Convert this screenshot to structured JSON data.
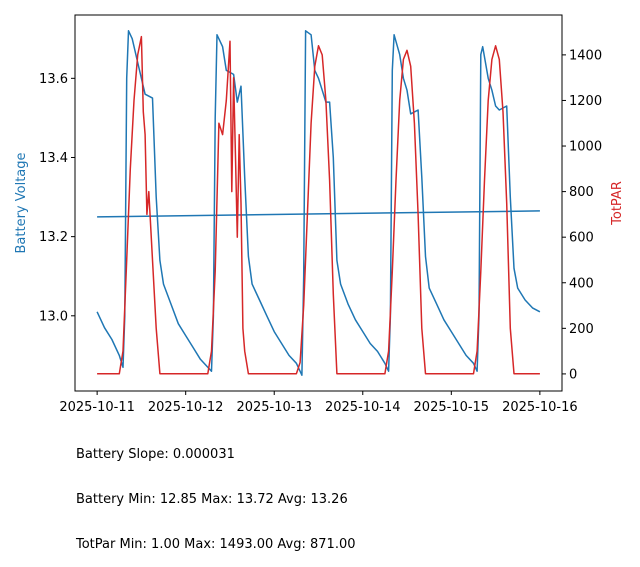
{
  "chart_data": {
    "type": "line",
    "x_range": [
      "2025-10-10 18:00",
      "2025-10-16 06:00"
    ],
    "x_ticks": [
      "2025-10-11",
      "2025-10-12",
      "2025-10-13",
      "2025-10-14",
      "2025-10-15",
      "2025-10-16"
    ],
    "left_axis": {
      "label": "Battery Voltage",
      "color": "#1f77b4",
      "ylim": [
        12.81,
        13.76
      ],
      "ticks": [
        "13.0",
        "13.2",
        "13.4",
        "13.6"
      ]
    },
    "right_axis": {
      "label": "TotPAR",
      "color": "#d62728",
      "ylim": [
        -75,
        1575
      ],
      "ticks": [
        "0",
        "200",
        "400",
        "600",
        "800",
        "1000",
        "1200",
        "1400"
      ]
    },
    "series": [
      {
        "axis": "left",
        "color": "#1f77b4",
        "points": [
          [
            "2025-10-11 00:00",
            13.01
          ],
          [
            "2025-10-11 02:00",
            12.97
          ],
          [
            "2025-10-11 04:00",
            12.94
          ],
          [
            "2025-10-11 06:00",
            12.9
          ],
          [
            "2025-10-11 07:00",
            12.87
          ],
          [
            "2025-10-11 07:30",
            13.0
          ],
          [
            "2025-10-11 08:00",
            13.6
          ],
          [
            "2025-10-11 08:30",
            13.72
          ],
          [
            "2025-10-11 09:30",
            13.7
          ],
          [
            "2025-10-11 11:00",
            13.64
          ],
          [
            "2025-10-11 12:00",
            13.6
          ],
          [
            "2025-10-11 13:00",
            13.56
          ],
          [
            "2025-10-11 15:00",
            13.55
          ],
          [
            "2025-10-11 16:00",
            13.3
          ],
          [
            "2025-10-11 17:00",
            13.14
          ],
          [
            "2025-10-11 18:00",
            13.08
          ],
          [
            "2025-10-11 20:00",
            13.03
          ],
          [
            "2025-10-11 22:00",
            12.98
          ],
          [
            "2025-10-12 00:00",
            12.95
          ],
          [
            "2025-10-12 02:00",
            12.92
          ],
          [
            "2025-10-12 04:00",
            12.89
          ],
          [
            "2025-10-12 06:00",
            12.87
          ],
          [
            "2025-10-12 07:00",
            12.86
          ],
          [
            "2025-10-12 07:30",
            13.0
          ],
          [
            "2025-10-12 08:00",
            13.5
          ],
          [
            "2025-10-12 08:30",
            13.71
          ],
          [
            "2025-10-12 10:00",
            13.68
          ],
          [
            "2025-10-12 11:00",
            13.62
          ],
          [
            "2025-10-12 13:00",
            13.61
          ],
          [
            "2025-10-12 14:00",
            13.54
          ],
          [
            "2025-10-12 15:00",
            13.58
          ],
          [
            "2025-10-12 16:00",
            13.35
          ],
          [
            "2025-10-12 17:00",
            13.15
          ],
          [
            "2025-10-12 18:00",
            13.08
          ],
          [
            "2025-10-12 20:00",
            13.04
          ],
          [
            "2025-10-12 22:00",
            13.0
          ],
          [
            "2025-10-13 00:00",
            12.96
          ],
          [
            "2025-10-13 02:00",
            12.93
          ],
          [
            "2025-10-13 04:00",
            12.9
          ],
          [
            "2025-10-13 06:00",
            12.88
          ],
          [
            "2025-10-13 07:30",
            12.85
          ],
          [
            "2025-10-13 08:00",
            13.1
          ],
          [
            "2025-10-13 08:30",
            13.72
          ],
          [
            "2025-10-13 10:00",
            13.71
          ],
          [
            "2025-10-13 11:00",
            13.62
          ],
          [
            "2025-10-13 12:00",
            13.6
          ],
          [
            "2025-10-13 13:00",
            13.57
          ],
          [
            "2025-10-13 14:00",
            13.54
          ],
          [
            "2025-10-13 15:00",
            13.54
          ],
          [
            "2025-10-13 16:00",
            13.4
          ],
          [
            "2025-10-13 17:00",
            13.14
          ],
          [
            "2025-10-13 18:00",
            13.08
          ],
          [
            "2025-10-13 20:00",
            13.03
          ],
          [
            "2025-10-13 22:00",
            12.99
          ],
          [
            "2025-10-14 00:00",
            12.96
          ],
          [
            "2025-10-14 02:00",
            12.93
          ],
          [
            "2025-10-14 04:00",
            12.91
          ],
          [
            "2025-10-14 06:00",
            12.88
          ],
          [
            "2025-10-14 07:00",
            12.86
          ],
          [
            "2025-10-14 07:30",
            13.0
          ],
          [
            "2025-10-14 08:00",
            13.62
          ],
          [
            "2025-10-14 08:30",
            13.71
          ],
          [
            "2025-10-14 10:00",
            13.66
          ],
          [
            "2025-10-14 11:00",
            13.6
          ],
          [
            "2025-10-14 12:00",
            13.57
          ],
          [
            "2025-10-14 13:00",
            13.51
          ],
          [
            "2025-10-14 15:00",
            13.52
          ],
          [
            "2025-10-14 16:00",
            13.35
          ],
          [
            "2025-10-14 17:00",
            13.15
          ],
          [
            "2025-10-14 18:00",
            13.07
          ],
          [
            "2025-10-14 20:00",
            13.03
          ],
          [
            "2025-10-14 22:00",
            12.99
          ],
          [
            "2025-10-15 00:00",
            12.96
          ],
          [
            "2025-10-15 02:00",
            12.93
          ],
          [
            "2025-10-15 04:00",
            12.9
          ],
          [
            "2025-10-15 06:00",
            12.88
          ],
          [
            "2025-10-15 07:00",
            12.86
          ],
          [
            "2025-10-15 07:30",
            13.0
          ],
          [
            "2025-10-15 08:00",
            13.66
          ],
          [
            "2025-10-15 08:30",
            13.68
          ],
          [
            "2025-10-15 10:00",
            13.6
          ],
          [
            "2025-10-15 11:00",
            13.57
          ],
          [
            "2025-10-15 12:00",
            13.53
          ],
          [
            "2025-10-15 13:00",
            13.52
          ],
          [
            "2025-10-15 15:00",
            13.53
          ],
          [
            "2025-10-15 16:00",
            13.3
          ],
          [
            "2025-10-15 17:00",
            13.12
          ],
          [
            "2025-10-15 18:00",
            13.07
          ],
          [
            "2025-10-15 20:00",
            13.04
          ],
          [
            "2025-10-15 22:00",
            13.02
          ],
          [
            "2025-10-16 00:00",
            13.01
          ]
        ]
      },
      {
        "axis": "left",
        "color": "#1f77b4",
        "points": [
          [
            "2025-10-11 00:00",
            13.25
          ],
          [
            "2025-10-16 00:00",
            13.265
          ]
        ]
      },
      {
        "axis": "right",
        "color": "#d62728",
        "points": [
          [
            "2025-10-11 00:00",
            1
          ],
          [
            "2025-10-11 06:00",
            1
          ],
          [
            "2025-10-11 07:00",
            100
          ],
          [
            "2025-10-11 08:00",
            500
          ],
          [
            "2025-10-11 09:00",
            900
          ],
          [
            "2025-10-11 10:00",
            1200
          ],
          [
            "2025-10-11 11:00",
            1400
          ],
          [
            "2025-10-11 12:00",
            1480
          ],
          [
            "2025-10-11 12:30",
            1150
          ],
          [
            "2025-10-11 13:00",
            1050
          ],
          [
            "2025-10-11 13:30",
            700
          ],
          [
            "2025-10-11 14:00",
            800
          ],
          [
            "2025-10-11 15:00",
            500
          ],
          [
            "2025-10-11 16:00",
            200
          ],
          [
            "2025-10-11 17:00",
            1
          ],
          [
            "2025-10-12 06:00",
            1
          ],
          [
            "2025-10-12 07:00",
            100
          ],
          [
            "2025-10-12 08:00",
            450
          ],
          [
            "2025-10-12 09:00",
            1100
          ],
          [
            "2025-10-12 10:00",
            1050
          ],
          [
            "2025-10-12 11:00",
            1200
          ],
          [
            "2025-10-12 12:00",
            1460
          ],
          [
            "2025-10-12 12:30",
            800
          ],
          [
            "2025-10-12 13:00",
            1300
          ],
          [
            "2025-10-12 13:30",
            950
          ],
          [
            "2025-10-12 14:00",
            600
          ],
          [
            "2025-10-12 14:30",
            1050
          ],
          [
            "2025-10-12 15:00",
            750
          ],
          [
            "2025-10-12 15:30",
            200
          ],
          [
            "2025-10-12 16:00",
            100
          ],
          [
            "2025-10-12 17:00",
            1
          ],
          [
            "2025-10-13 06:00",
            1
          ],
          [
            "2025-10-13 07:00",
            50
          ],
          [
            "2025-10-13 08:00",
            300
          ],
          [
            "2025-10-13 09:00",
            700
          ],
          [
            "2025-10-13 10:00",
            1100
          ],
          [
            "2025-10-13 11:00",
            1350
          ],
          [
            "2025-10-13 12:00",
            1440
          ],
          [
            "2025-10-13 13:00",
            1400
          ],
          [
            "2025-10-13 14:00",
            1200
          ],
          [
            "2025-10-13 15:00",
            850
          ],
          [
            "2025-10-13 16:00",
            350
          ],
          [
            "2025-10-13 17:00",
            1
          ],
          [
            "2025-10-14 06:00",
            1
          ],
          [
            "2025-10-14 07:00",
            100
          ],
          [
            "2025-10-14 08:00",
            450
          ],
          [
            "2025-10-14 09:00",
            850
          ],
          [
            "2025-10-14 10:00",
            1200
          ],
          [
            "2025-10-14 11:00",
            1380
          ],
          [
            "2025-10-14 12:00",
            1420
          ],
          [
            "2025-10-14 13:00",
            1350
          ],
          [
            "2025-10-14 14:00",
            1100
          ],
          [
            "2025-10-14 15:00",
            700
          ],
          [
            "2025-10-14 16:00",
            200
          ],
          [
            "2025-10-14 17:00",
            1
          ],
          [
            "2025-10-15 06:00",
            1
          ],
          [
            "2025-10-15 07:00",
            100
          ],
          [
            "2025-10-15 08:00",
            450
          ],
          [
            "2025-10-15 09:00",
            850
          ],
          [
            "2025-10-15 10:00",
            1200
          ],
          [
            "2025-10-15 11:00",
            1380
          ],
          [
            "2025-10-15 12:00",
            1440
          ],
          [
            "2025-10-15 13:00",
            1380
          ],
          [
            "2025-10-15 14:00",
            1150
          ],
          [
            "2025-10-15 15:00",
            750
          ],
          [
            "2025-10-15 16:00",
            200
          ],
          [
            "2025-10-15 17:00",
            1
          ],
          [
            "2025-10-16 00:00",
            1
          ]
        ]
      }
    ]
  },
  "stats": {
    "line1": "Battery Slope: 0.000031",
    "line2": "Battery Min: 12.85 Max: 13.72 Avg: 13.26",
    "line3": "TotPar Min: 1.00 Max: 1493.00 Avg: 871.00"
  }
}
